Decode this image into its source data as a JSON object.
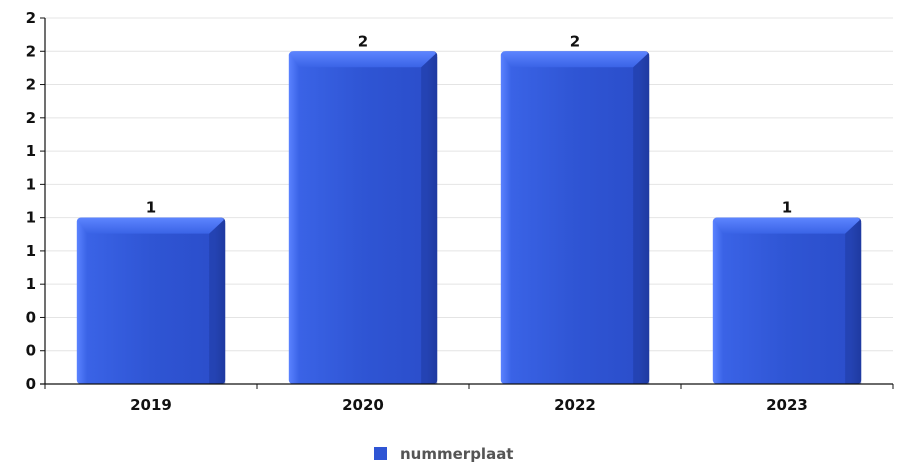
{
  "chart_data": {
    "type": "bar",
    "title": "",
    "xlabel": "",
    "ylabel": "",
    "categories": [
      "2019",
      "2020",
      "2022",
      "2023"
    ],
    "series": [
      {
        "name": "nummerplaat",
        "values": [
          1,
          2,
          2,
          1
        ],
        "data_labels": [
          "1",
          "2",
          "2",
          "1"
        ]
      }
    ],
    "ylim": [
      0,
      2.2
    ],
    "y_ticks": [
      0,
      0.2,
      0.4,
      0.6,
      0.8,
      1.0,
      1.2,
      1.4,
      1.6,
      1.8,
      2.0,
      2.2
    ],
    "y_tick_labels": [
      "0",
      "0",
      "0",
      "1",
      "1",
      "1",
      "1",
      "1",
      "2",
      "2",
      "2",
      "2"
    ],
    "grid": true,
    "legend_position": "bottom-center",
    "colors": {
      "bar": "#2f55d4",
      "bar_light": "#4f78f5",
      "bar_dark": "#1f3aa0",
      "grid": "#e4e4e4",
      "axis": "#111111"
    }
  }
}
